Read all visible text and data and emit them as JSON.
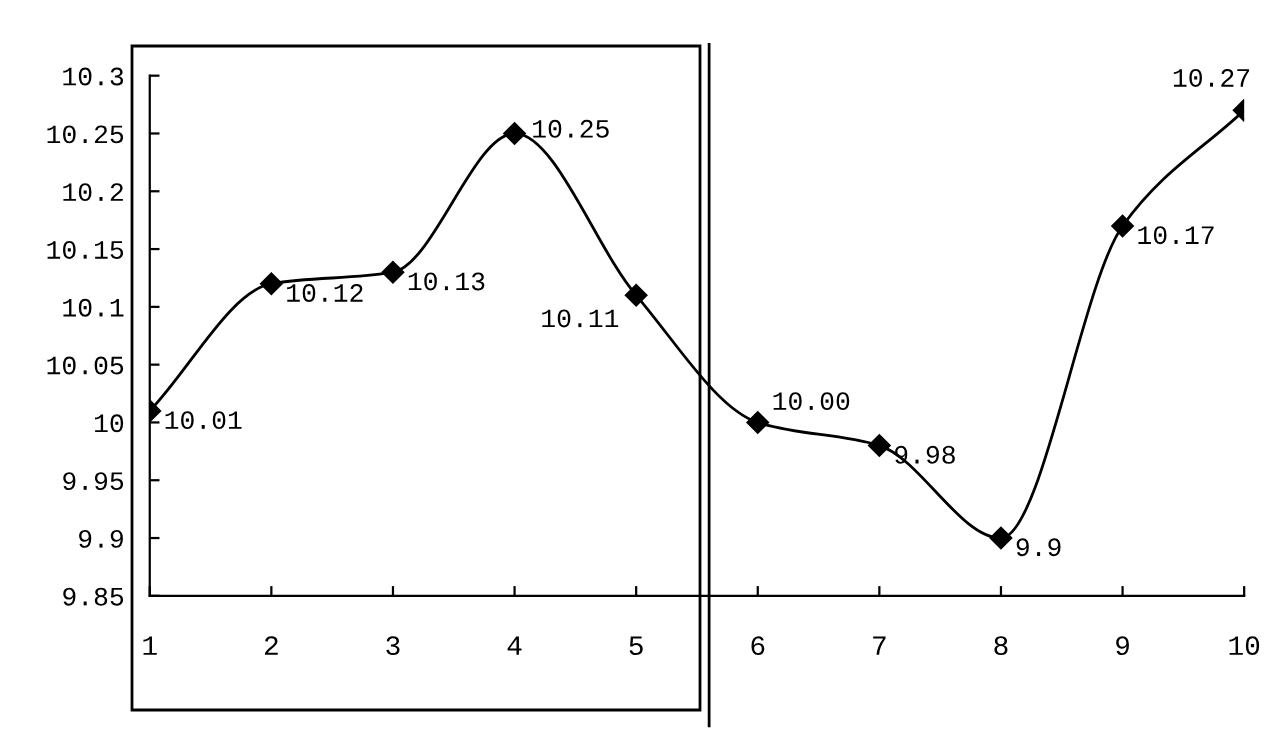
{
  "chart_data": {
    "type": "line",
    "x": [
      1,
      2,
      3,
      4,
      5,
      6,
      7,
      8,
      9,
      10
    ],
    "series": [
      {
        "color": "#000000",
        "values": [
          10.01,
          10.12,
          10.13,
          10.25,
          10.11,
          10.0,
          9.98,
          9.9,
          10.17,
          10.27
        ],
        "value_labels": [
          "10.01",
          "10.12",
          "10.13",
          "10.25",
          "10.11",
          "10.00",
          "9.98",
          "9.9",
          "10.17",
          "10.27"
        ]
      }
    ],
    "xlim": [
      1,
      10
    ],
    "xticks": [
      1,
      2,
      3,
      4,
      5,
      6,
      7,
      8,
      9,
      10
    ],
    "ylim": [
      9.85,
      10.3
    ],
    "yticks": [
      9.85,
      9.9,
      9.95,
      10,
      10.05,
      10.1,
      10.15,
      10.2,
      10.25,
      10.3
    ],
    "ref_lines": [
      {
        "axis": "x",
        "value": 5.6,
        "color": "#000000"
      }
    ],
    "marker": "diamond",
    "line_style": "solid",
    "grid": false,
    "legend": false
  }
}
